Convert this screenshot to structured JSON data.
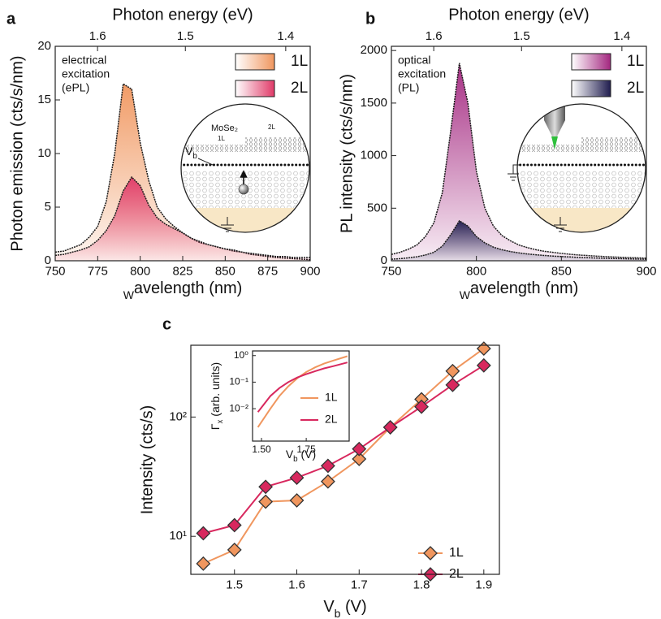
{
  "chart_data": [
    {
      "type": "area",
      "panel_label": "a",
      "xlabel": "Wavelength (nm)",
      "ylabel": "Photon emission (cts/s/nm)",
      "x2label": "Photon energy (eV)",
      "annotation": [
        "electrical",
        "excitation",
        "(ePL)"
      ],
      "diagram_labels": [
        "MoSe₂",
        "1L",
        "2L",
        "Vb"
      ],
      "x": [
        750,
        755,
        760,
        765,
        770,
        775,
        780,
        785,
        790,
        795,
        800,
        805,
        810,
        815,
        820,
        825,
        830,
        835,
        840,
        845,
        850,
        855,
        860,
        865,
        870,
        875,
        880,
        885,
        890,
        895,
        900
      ],
      "series": [
        {
          "name": "1L",
          "color": "#f0965e",
          "values": [
            0.8,
            0.9,
            1.2,
            1.5,
            2.2,
            3.2,
            5.5,
            10,
            16.5,
            16,
            11,
            7.5,
            5,
            3.9,
            3.2,
            2.6,
            2.1,
            1.7,
            1.5,
            1.3,
            1.1,
            0.9,
            0.8,
            0.6,
            0.5,
            0.4,
            0.3,
            0.25,
            0.2,
            0.15,
            0.1
          ]
        },
        {
          "name": "2L",
          "color": "#e03a68",
          "values": [
            0.5,
            0.6,
            0.8,
            1,
            1.3,
            1.9,
            2.8,
            4.2,
            6.5,
            7.8,
            7,
            5.2,
            4,
            3.4,
            3,
            2.6,
            2.1,
            1.8,
            1.5,
            1.3,
            1.1,
            1,
            0.8,
            0.7,
            0.6,
            0.5,
            0.4,
            0.4,
            0.3,
            0.3,
            0.3
          ]
        }
      ],
      "xlim": [
        750,
        900
      ],
      "ylim": [
        0,
        20
      ],
      "xticks": [
        750,
        775,
        800,
        825,
        850,
        875,
        900
      ],
      "yticks": [
        0,
        5,
        10,
        15,
        20
      ],
      "x2ticks": [
        1.6,
        1.5,
        1.4
      ]
    },
    {
      "type": "area",
      "panel_label": "b",
      "xlabel": "Wavelength (nm)",
      "ylabel": "PL intensity (cts/s/nm)",
      "x2label": "Photon energy (eV)",
      "annotation": [
        "optical",
        "excitation",
        "(PL)"
      ],
      "x": [
        750,
        755,
        760,
        765,
        770,
        775,
        780,
        785,
        790,
        795,
        800,
        805,
        810,
        815,
        820,
        825,
        830,
        835,
        840,
        845,
        850,
        855,
        860,
        865,
        870,
        875,
        880,
        885,
        890,
        895,
        900
      ],
      "series": [
        {
          "name": "1L",
          "color": "#a3267f",
          "values": [
            60,
            80,
            110,
            150,
            230,
            360,
            650,
            1250,
            1880,
            1500,
            850,
            500,
            330,
            240,
            190,
            150,
            125,
            105,
            90,
            80,
            70,
            62,
            55,
            50,
            45,
            40,
            36,
            33,
            30,
            28,
            25
          ]
        },
        {
          "name": "2L",
          "color": "#1f1c4e",
          "values": [
            15,
            20,
            28,
            38,
            55,
            80,
            140,
            250,
            380,
            330,
            230,
            170,
            130,
            105,
            88,
            75,
            65,
            57,
            50,
            45,
            40,
            36,
            32,
            29,
            26,
            24,
            22,
            20,
            18,
            16,
            15
          ]
        }
      ],
      "xlim": [
        750,
        900
      ],
      "ylim": [
        0,
        2040
      ],
      "xticks": [
        750,
        800,
        850,
        900
      ],
      "yticks": [
        0,
        500,
        1000,
        1500,
        2000
      ],
      "x2ticks": [
        1.6,
        1.5,
        1.4
      ]
    },
    {
      "type": "line",
      "panel_label": "c",
      "marker": "diamond",
      "ylog": true,
      "xlabel": "Vb (V)",
      "ylabel": "Intensity (cts/s)",
      "x": [
        1.45,
        1.5,
        1.55,
        1.6,
        1.65,
        1.7,
        1.75,
        1.8,
        1.85,
        1.9
      ],
      "series": [
        {
          "name": "1L",
          "color": "#f0965e",
          "values": [
            5.9,
            7.7,
            19.5,
            20,
            28.8,
            44.5,
            82,
            141,
            243,
            375
          ]
        },
        {
          "name": "2L",
          "color": "#d8285e",
          "values": [
            10.6,
            12.4,
            26,
            31,
            39,
            54,
            82,
            122,
            186,
            271
          ]
        }
      ],
      "xlim": [
        1.43,
        1.925
      ],
      "ylim": [
        4.8,
        400
      ],
      "xticks": [
        1.5,
        1.6,
        1.7,
        1.8,
        1.9
      ],
      "yticks": [
        {
          "value": 10,
          "label": "10¹"
        },
        {
          "value": 100,
          "label": "10²"
        }
      ],
      "inset": {
        "type": "line",
        "ylog": true,
        "xlabel": "Vb (V)",
        "ylabel": "Γx (arb. units)",
        "x": [
          1.48,
          1.55,
          1.6,
          1.65,
          1.7,
          1.75,
          1.8,
          1.85,
          1.9,
          1.98
        ],
        "series": [
          {
            "name": "1L",
            "color": "#f0965e",
            "values": [
              0.002,
              0.01,
              0.03,
              0.07,
              0.14,
              0.24,
              0.36,
              0.5,
              0.65,
              0.95
            ]
          },
          {
            "name": "2L",
            "color": "#d8285e",
            "values": [
              0.0075,
              0.03,
              0.06,
              0.1,
              0.15,
              0.2,
              0.26,
              0.33,
              0.4,
              0.55
            ]
          }
        ],
        "xlim": [
          1.45,
          1.99
        ],
        "ylim": [
          0.0006,
          1.5
        ],
        "xticks": [
          {
            "value": 1.5,
            "label": "1.50"
          },
          {
            "value": 1.75,
            "label": "1.75"
          }
        ],
        "yticks": [
          {
            "value": 0.01,
            "label": "10⁻²"
          },
          {
            "value": 0.1,
            "label": "10⁻¹"
          },
          {
            "value": 1,
            "label": "10⁰"
          }
        ]
      }
    }
  ]
}
